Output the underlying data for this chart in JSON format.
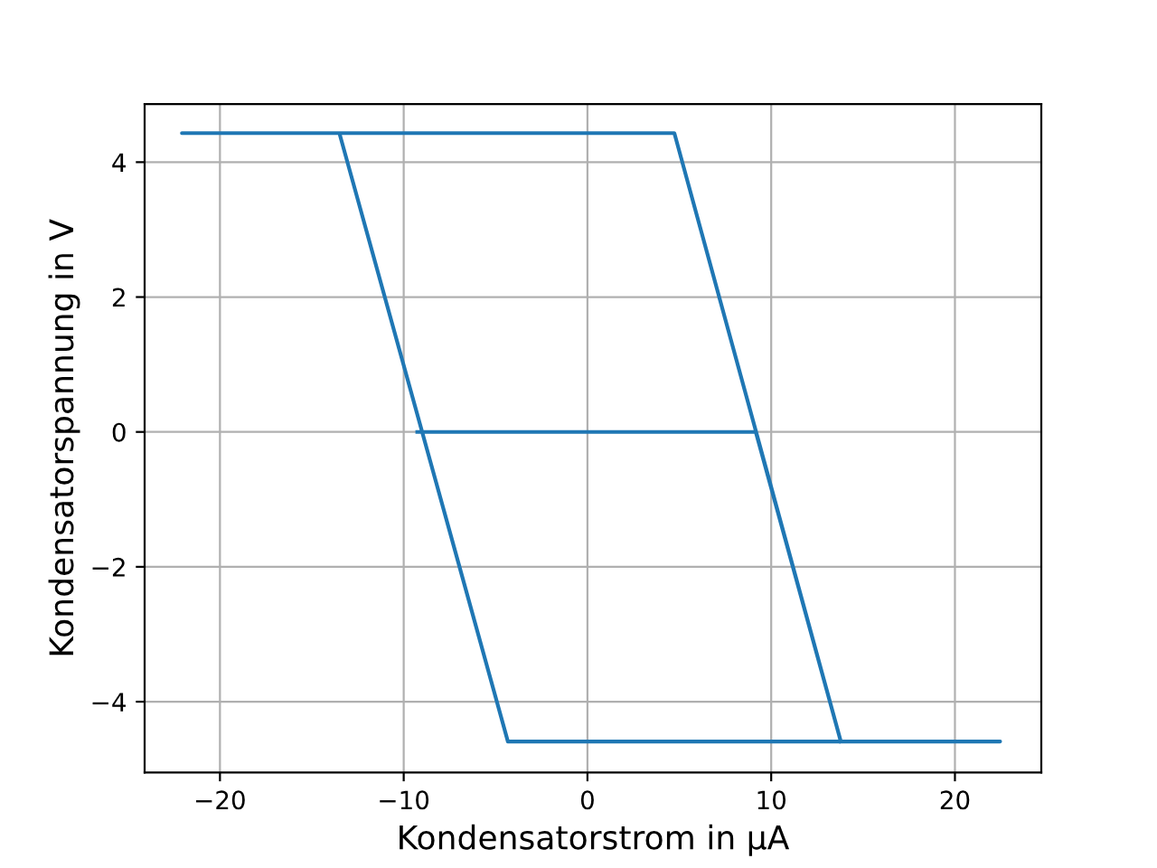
{
  "chart_data": {
    "type": "line",
    "xlabel": "Kondensatorstrom in μA",
    "ylabel": "Kondensatorspannung in V",
    "x": [
      -9.26,
      9.16,
      13.79,
      22.46,
      -4.33,
      -13.5,
      -22.07,
      4.73,
      13.79
    ],
    "series": [
      {
        "color": "#1f77b4",
        "values": [
          0,
          0,
          -4.59,
          -4.59,
          -4.59,
          4.43,
          4.43,
          4.43,
          -4.59
        ]
      }
    ],
    "xlim": [
      -24.1,
      24.7
    ],
    "ylim": [
      -5.05,
      4.86
    ],
    "xticks": [
      {
        "value": -20,
        "label": "−20"
      },
      {
        "value": -10,
        "label": "−10"
      },
      0,
      10,
      20
    ],
    "yticks": [
      {
        "value": -4,
        "label": "−4"
      },
      {
        "value": -2,
        "label": "−2"
      },
      0,
      2,
      4
    ],
    "grid": true
  }
}
